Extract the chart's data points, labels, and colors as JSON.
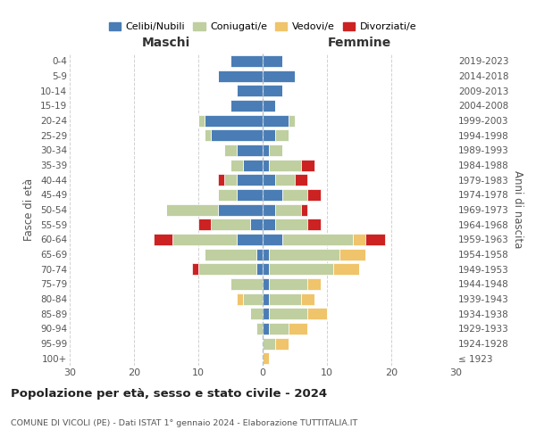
{
  "age_groups": [
    "100+",
    "95-99",
    "90-94",
    "85-89",
    "80-84",
    "75-79",
    "70-74",
    "65-69",
    "60-64",
    "55-59",
    "50-54",
    "45-49",
    "40-44",
    "35-39",
    "30-34",
    "25-29",
    "20-24",
    "15-19",
    "10-14",
    "5-9",
    "0-4"
  ],
  "birth_years": [
    "≤ 1923",
    "1924-1928",
    "1929-1933",
    "1934-1938",
    "1939-1943",
    "1944-1948",
    "1949-1953",
    "1954-1958",
    "1959-1963",
    "1964-1968",
    "1969-1973",
    "1974-1978",
    "1979-1983",
    "1984-1988",
    "1989-1993",
    "1994-1998",
    "1999-2003",
    "2004-2008",
    "2009-2013",
    "2014-2018",
    "2019-2023"
  ],
  "colors": {
    "celibi": "#4a7db5",
    "coniugati": "#bfcfa0",
    "vedovi": "#f0c46a",
    "divorziati": "#cc2222"
  },
  "male": {
    "celibi": [
      0,
      0,
      0,
      0,
      0,
      0,
      1,
      1,
      4,
      2,
      7,
      4,
      4,
      3,
      4,
      8,
      9,
      5,
      4,
      7,
      5
    ],
    "coniugati": [
      0,
      0,
      1,
      2,
      3,
      5,
      9,
      8,
      10,
      6,
      8,
      3,
      2,
      2,
      2,
      1,
      1,
      0,
      0,
      0,
      0
    ],
    "vedovi": [
      0,
      0,
      0,
      0,
      1,
      0,
      0,
      0,
      0,
      0,
      0,
      0,
      0,
      0,
      0,
      0,
      0,
      0,
      0,
      0,
      0
    ],
    "divorziati": [
      0,
      0,
      0,
      0,
      0,
      0,
      1,
      0,
      3,
      2,
      0,
      0,
      1,
      0,
      0,
      0,
      0,
      0,
      0,
      0,
      0
    ]
  },
  "female": {
    "celibi": [
      0,
      0,
      1,
      1,
      1,
      1,
      1,
      1,
      3,
      2,
      2,
      3,
      2,
      1,
      1,
      2,
      4,
      2,
      3,
      5,
      3
    ],
    "coniugati": [
      0,
      2,
      3,
      6,
      5,
      6,
      10,
      11,
      11,
      5,
      4,
      4,
      3,
      5,
      2,
      2,
      1,
      0,
      0,
      0,
      0
    ],
    "vedovi": [
      1,
      2,
      3,
      3,
      2,
      2,
      4,
      4,
      2,
      0,
      0,
      0,
      0,
      0,
      0,
      0,
      0,
      0,
      0,
      0,
      0
    ],
    "divorziati": [
      0,
      0,
      0,
      0,
      0,
      0,
      0,
      0,
      3,
      2,
      1,
      2,
      2,
      2,
      0,
      0,
      0,
      0,
      0,
      0,
      0
    ]
  },
  "title": "Popolazione per età, sesso e stato civile - 2024",
  "subtitle": "COMUNE DI VICOLI (PE) - Dati ISTAT 1° gennaio 2024 - Elaborazione TUTTITALIA.IT",
  "xlabel_left": "Maschi",
  "xlabel_right": "Femmine",
  "ylabel_left": "Fasce di età",
  "ylabel_right": "Anni di nascita",
  "xlim": 30,
  "legend_labels": [
    "Celibi/Nubili",
    "Coniugati/e",
    "Vedovi/e",
    "Divorziati/e"
  ],
  "background_color": "#ffffff",
  "grid_color": "#cccccc"
}
